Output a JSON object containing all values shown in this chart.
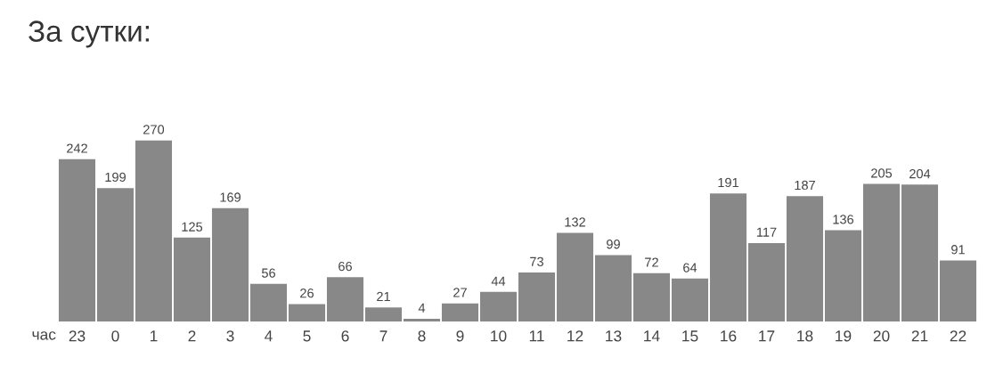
{
  "chart_data": {
    "type": "bar",
    "title": "За сутки:",
    "xlabel": "час",
    "categories": [
      "23",
      "0",
      "1",
      "2",
      "3",
      "4",
      "5",
      "6",
      "7",
      "8",
      "9",
      "10",
      "11",
      "12",
      "13",
      "14",
      "15",
      "16",
      "17",
      "18",
      "19",
      "20",
      "21",
      "22"
    ],
    "values": [
      242,
      199,
      270,
      125,
      169,
      56,
      26,
      66,
      21,
      4,
      27,
      44,
      73,
      132,
      99,
      72,
      64,
      191,
      117,
      187,
      136,
      205,
      204,
      91
    ],
    "color": "#888888",
    "data_labels": true,
    "tick_labels": "x"
  }
}
